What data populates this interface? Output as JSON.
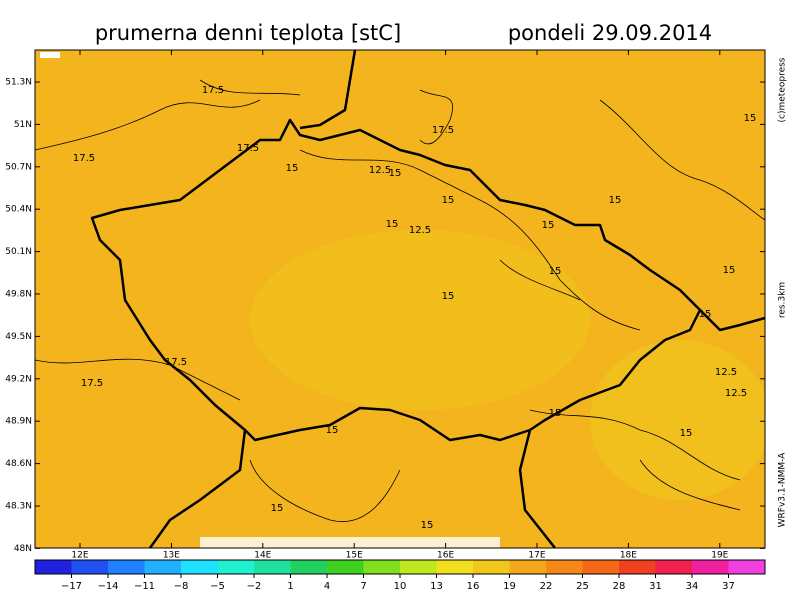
{
  "header": {
    "title": "prumerna denni teplota [stC]",
    "date": "pondeli 29.09.2014"
  },
  "lat_ticks": [
    "51.3N",
    "51N",
    "50.7N",
    "50.4N",
    "50.1N",
    "49.8N",
    "49.5N",
    "49.2N",
    "48.9N",
    "48.6N",
    "48.3N",
    "48N"
  ],
  "lon_ticks": [
    "12E",
    "13E",
    "14E",
    "15E",
    "16E",
    "17E",
    "18E",
    "19E"
  ],
  "colorbar_labels": [
    "−17",
    "−14",
    "−11",
    "−8",
    "−5",
    "−2",
    "1",
    "4",
    "7",
    "10",
    "13",
    "16",
    "19",
    "22",
    "25",
    "28",
    "31",
    "34",
    "37"
  ],
  "contour_labels": [
    "17.5",
    "17.5",
    "17.5",
    "17.5",
    "15",
    "15",
    "15",
    "15",
    "15",
    "15",
    "15",
    "15",
    "15",
    "12.5",
    "15",
    "15",
    "12.5",
    "17.5",
    "17.5",
    "15",
    "15",
    "15",
    "15",
    "15",
    "12.5",
    "12.5"
  ],
  "side_texts": {
    "copyright": "(c)meteopress",
    "resolution": "res.3km",
    "model": "WRFv3.1-NMM-A"
  }
}
